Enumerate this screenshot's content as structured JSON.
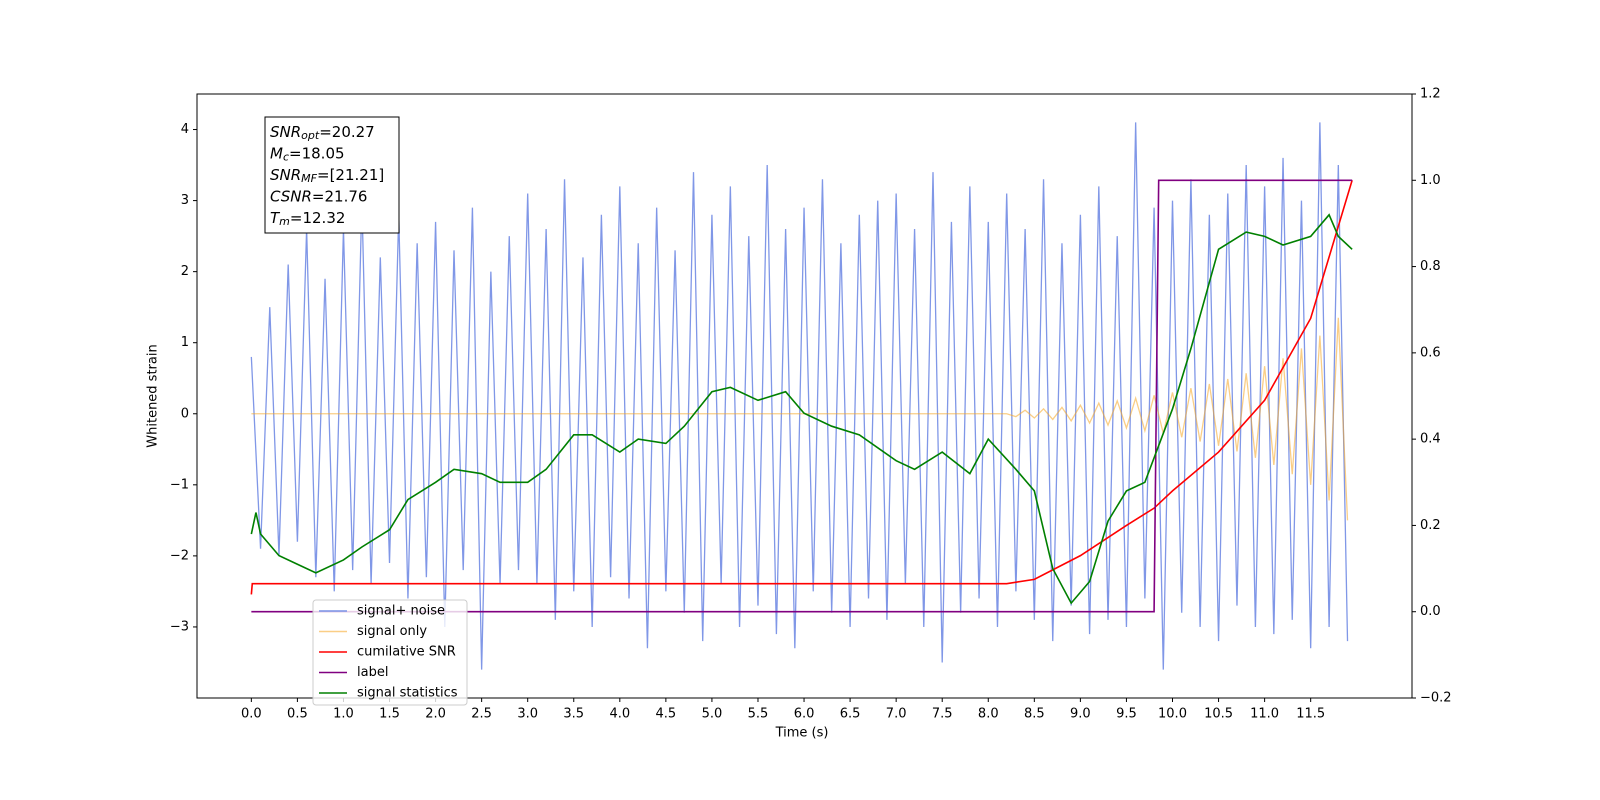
{
  "chart_data": {
    "type": "line",
    "xlabel": "Time (s)",
    "ylabel": "Whitened strain",
    "xlim": [
      -0.59,
      12.6
    ],
    "ylim": [
      -4.0,
      4.5
    ],
    "y2lim": [
      -0.2,
      1.2
    ],
    "xticks": [
      {
        "value": 0,
        "label": "0.0"
      },
      {
        "value": 0.5,
        "label": "0.5"
      },
      {
        "value": 1,
        "label": "1.0"
      },
      {
        "value": 1.5,
        "label": "1.5"
      },
      {
        "value": 2,
        "label": "2.0"
      },
      {
        "value": 2.5,
        "label": "2.5"
      },
      {
        "value": 3,
        "label": "3.0"
      },
      {
        "value": 3.5,
        "label": "3.5"
      },
      {
        "value": 4,
        "label": "4.0"
      },
      {
        "value": 4.5,
        "label": "4.5"
      },
      {
        "value": 5,
        "label": "5.0"
      },
      {
        "value": 5.5,
        "label": "5.5"
      },
      {
        "value": 6,
        "label": "6.0"
      },
      {
        "value": 6.5,
        "label": "6.5"
      },
      {
        "value": 7,
        "label": "7.0"
      },
      {
        "value": 7.5,
        "label": "7.5"
      },
      {
        "value": 8,
        "label": "8.0"
      },
      {
        "value": 8.5,
        "label": "8.5"
      },
      {
        "value": 9,
        "label": "9.0"
      },
      {
        "value": 9.5,
        "label": "9.5"
      },
      {
        "value": 10,
        "label": "10.0"
      },
      {
        "value": 10.5,
        "label": "10.5"
      },
      {
        "value": 11,
        "label": "11.0"
      },
      {
        "value": 11.5,
        "label": "11.5"
      }
    ],
    "yticks": [
      {
        "value": -3,
        "label": "−3"
      },
      {
        "value": -2,
        "label": "−2"
      },
      {
        "value": -1,
        "label": "−1"
      },
      0,
      1,
      2,
      3,
      4
    ],
    "y2ticks": [
      {
        "value": -0.2,
        "label": "−0.2"
      },
      {
        "value": 0,
        "label": "0.0"
      },
      {
        "value": 0.2,
        "label": "0.2"
      },
      {
        "value": 0.4,
        "label": "0.4"
      },
      {
        "value": 0.6,
        "label": "0.6"
      },
      {
        "value": 0.8,
        "label": "0.8"
      },
      {
        "value": 1.0,
        "label": "1.0"
      },
      {
        "value": 1.2,
        "label": "1.2"
      }
    ],
    "legend": "lower left",
    "annotations": [
      {
        "text": "SNR",
        "sub": "opt",
        "value": "=20.27"
      },
      {
        "text": "M",
        "sub": "c",
        "value": "=18.05"
      },
      {
        "text": "SNR",
        "sub": "MF",
        "value": "=[21.21]"
      },
      {
        "text": "CSNR",
        "value": "=21.76"
      },
      {
        "text": "T",
        "sub": "m",
        "value": "=12.32"
      }
    ],
    "series": [
      {
        "name": "signal+ noise",
        "color": "#7991e6",
        "x": [
          0,
          0.1,
          0.2,
          0.3,
          0.4,
          0.5,
          0.6,
          0.7,
          0.8,
          0.9,
          1,
          1.1,
          1.2,
          1.3,
          1.4,
          1.5,
          1.6,
          1.7,
          1.8,
          1.9,
          2,
          2.1,
          2.2,
          2.3,
          2.4,
          2.5,
          2.6,
          2.7,
          2.8,
          2.9,
          3,
          3.1,
          3.2,
          3.3,
          3.4,
          3.5,
          3.6,
          3.7,
          3.8,
          3.9,
          4,
          4.1,
          4.2,
          4.3,
          4.4,
          4.5,
          4.6,
          4.7,
          4.8,
          4.9,
          5,
          5.1,
          5.2,
          5.3,
          5.4,
          5.5,
          5.6,
          5.7,
          5.8,
          5.9,
          6,
          6.1,
          6.2,
          6.3,
          6.4,
          6.5,
          6.6,
          6.7,
          6.8,
          6.9,
          7,
          7.1,
          7.2,
          7.3,
          7.4,
          7.5,
          7.6,
          7.7,
          7.8,
          7.9,
          8,
          8.1,
          8.2,
          8.3,
          8.4,
          8.5,
          8.6,
          8.7,
          8.8,
          8.9,
          9,
          9.1,
          9.2,
          9.3,
          9.4,
          9.5,
          9.6,
          9.7,
          9.8,
          9.9,
          10,
          10.1,
          10.2,
          10.3,
          10.4,
          10.5,
          10.6,
          10.7,
          10.8,
          10.9,
          11,
          11.1,
          11.2,
          11.3,
          11.4,
          11.5,
          11.6,
          11.7,
          11.8,
          11.9
        ],
        "values": [
          0.8,
          -1.9,
          1.5,
          -2.0,
          2.1,
          -1.8,
          2.6,
          -2.3,
          1.9,
          -2.5,
          2.6,
          -2.2,
          3.0,
          -2.4,
          2.2,
          -2.1,
          2.8,
          -2.6,
          2.4,
          -2.3,
          2.7,
          -3.0,
          2.3,
          -2.2,
          2.9,
          -3.6,
          2.0,
          -2.4,
          2.5,
          -2.2,
          3.1,
          -2.4,
          2.6,
          -2.9,
          3.3,
          -2.5,
          2.2,
          -3.0,
          2.8,
          -2.3,
          3.2,
          -2.6,
          2.4,
          -3.3,
          2.9,
          -2.5,
          2.3,
          -2.8,
          3.4,
          -3.2,
          2.8,
          -2.4,
          3.2,
          -3.0,
          2.5,
          -2.7,
          3.5,
          -3.1,
          2.6,
          -3.3,
          2.9,
          -2.5,
          3.3,
          -2.8,
          2.4,
          -3.0,
          2.8,
          -2.6,
          3.0,
          -2.9,
          3.1,
          -2.4,
          2.6,
          -3.0,
          3.4,
          -3.5,
          2.7,
          -2.8,
          3.2,
          -2.6,
          2.7,
          -3.0,
          3.1,
          -2.5,
          2.6,
          -2.9,
          3.3,
          -3.2,
          2.4,
          -2.7,
          2.8,
          -3.1,
          3.2,
          -2.9,
          2.5,
          -3.0,
          4.1,
          -2.6,
          2.9,
          -3.6,
          3.0,
          -2.8,
          3.3,
          -3.0,
          2.8,
          -3.2,
          3.1,
          -2.7,
          3.5,
          -3.0,
          3.2,
          -3.1,
          3.6,
          -2.9,
          3.0,
          -3.3,
          4.1,
          -3.0,
          3.5,
          -3.2
        ]
      },
      {
        "name": "signal only",
        "color": "#f5a623",
        "x": [
          0,
          8.2,
          8.3,
          8.4,
          8.5,
          8.6,
          8.7,
          8.8,
          8.9,
          9,
          9.1,
          9.2,
          9.3,
          9.4,
          9.5,
          9.6,
          9.7,
          9.8,
          9.9,
          10,
          10.1,
          10.2,
          10.3,
          10.4,
          10.5,
          10.6,
          10.7,
          10.8,
          10.9,
          11,
          11.1,
          11.2,
          11.3,
          11.4,
          11.5,
          11.6,
          11.7,
          11.8,
          11.9
        ],
        "values": [
          0,
          0,
          -0.04,
          0.05,
          -0.06,
          0.07,
          -0.08,
          0.09,
          -0.1,
          0.12,
          -0.13,
          0.15,
          -0.16,
          0.18,
          -0.2,
          0.22,
          -0.24,
          0.26,
          -0.28,
          0.3,
          -0.33,
          0.36,
          -0.39,
          0.42,
          -0.45,
          0.49,
          -0.53,
          0.57,
          -0.62,
          0.67,
          -0.72,
          0.78,
          -0.85,
          0.92,
          -1.0,
          1.1,
          -1.22,
          1.35,
          -1.5
        ]
      },
      {
        "name": "cumilative SNR",
        "color": "#ff0000",
        "axis": "y2",
        "x": [
          0,
          0.01,
          8.2,
          8.5,
          9.0,
          9.5,
          9.8,
          10.0,
          10.5,
          11.0,
          11.5,
          11.95
        ],
        "values": [
          0.04,
          0.065,
          0.065,
          0.075,
          0.13,
          0.2,
          0.24,
          0.28,
          0.37,
          0.49,
          0.68,
          1.0
        ]
      },
      {
        "name": "label",
        "color": "#800080",
        "axis": "y2",
        "x": [
          0,
          9.8,
          9.85,
          11.95
        ],
        "values": [
          0,
          0,
          1,
          1
        ]
      },
      {
        "name": "signal statistics",
        "color": "#008000",
        "axis": "y2",
        "x": [
          0,
          0.05,
          0.1,
          0.3,
          0.5,
          0.7,
          1.0,
          1.2,
          1.5,
          1.7,
          2.0,
          2.2,
          2.5,
          2.7,
          3.0,
          3.2,
          3.5,
          3.7,
          4.0,
          4.2,
          4.5,
          4.7,
          5.0,
          5.2,
          5.5,
          5.8,
          6.0,
          6.3,
          6.6,
          7.0,
          7.2,
          7.5,
          7.8,
          8.0,
          8.3,
          8.5,
          8.7,
          8.9,
          9.1,
          9.3,
          9.5,
          9.7,
          10.0,
          10.2,
          10.5,
          10.8,
          11.0,
          11.2,
          11.5,
          11.7,
          11.8,
          11.95
        ],
        "values": [
          0.18,
          0.23,
          0.18,
          0.13,
          0.11,
          0.09,
          0.12,
          0.15,
          0.19,
          0.26,
          0.3,
          0.33,
          0.32,
          0.3,
          0.3,
          0.33,
          0.41,
          0.41,
          0.37,
          0.4,
          0.39,
          0.43,
          0.51,
          0.52,
          0.49,
          0.51,
          0.46,
          0.43,
          0.41,
          0.35,
          0.33,
          0.37,
          0.32,
          0.4,
          0.33,
          0.28,
          0.1,
          0.02,
          0.07,
          0.21,
          0.28,
          0.3,
          0.47,
          0.61,
          0.84,
          0.88,
          0.87,
          0.85,
          0.87,
          0.92,
          0.87,
          0.84
        ]
      }
    ]
  }
}
